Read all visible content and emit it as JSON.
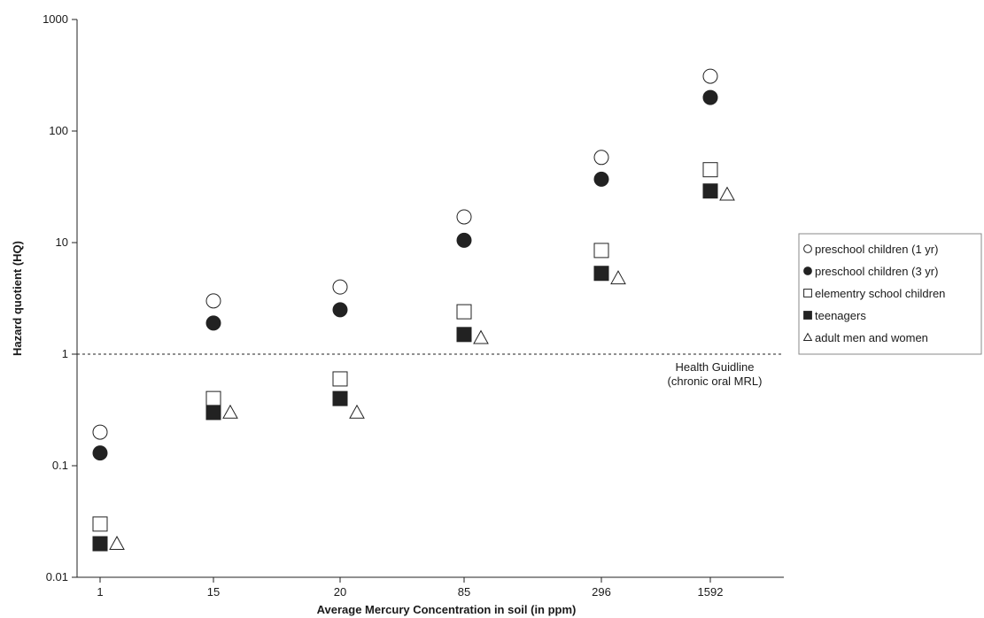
{
  "chart_data": {
    "type": "scatter",
    "title": "",
    "xlabel": "Average Mercury  Concentration  in soil (in ppm)",
    "ylabel": "Hazard quotient (HQ)",
    "categories": [
      "1",
      "15",
      "20",
      "85",
      "296",
      "1592"
    ],
    "y_scale": "log",
    "ylim": [
      0.01,
      1000
    ],
    "y_ticks": [
      {
        "value": 0.01,
        "label": "0.01"
      },
      {
        "value": 0.1,
        "label": "0.1"
      },
      {
        "value": 1,
        "label": "1"
      },
      {
        "value": 10,
        "label": "10"
      },
      {
        "value": 100,
        "label": "100"
      },
      {
        "value": 1000,
        "label": "1000"
      }
    ],
    "grid": false,
    "legend_position": "right",
    "series": [
      {
        "name": "preschool children (1 yr)",
        "marker": "circle-open",
        "values": [
          0.2,
          3.0,
          4.0,
          17,
          58,
          310
        ]
      },
      {
        "name": "preschool children (3 yr)",
        "marker": "circle-filled",
        "values": [
          0.13,
          1.9,
          2.5,
          10.5,
          37,
          200
        ]
      },
      {
        "name": "elementry school children",
        "marker": "square-open",
        "values": [
          0.03,
          0.4,
          0.6,
          2.4,
          8.5,
          45
        ]
      },
      {
        "name": "teenagers",
        "marker": "square-filled",
        "values": [
          0.02,
          0.3,
          0.4,
          1.5,
          5.3,
          29
        ]
      },
      {
        "name": "adult men and women",
        "marker": "triangle-open",
        "values": [
          0.02,
          0.3,
          0.3,
          1.4,
          4.8,
          27
        ]
      }
    ],
    "reference_line": {
      "value": 1,
      "label_lines": [
        "Health Guidline",
        "(chronic oral MRL)"
      ]
    }
  }
}
